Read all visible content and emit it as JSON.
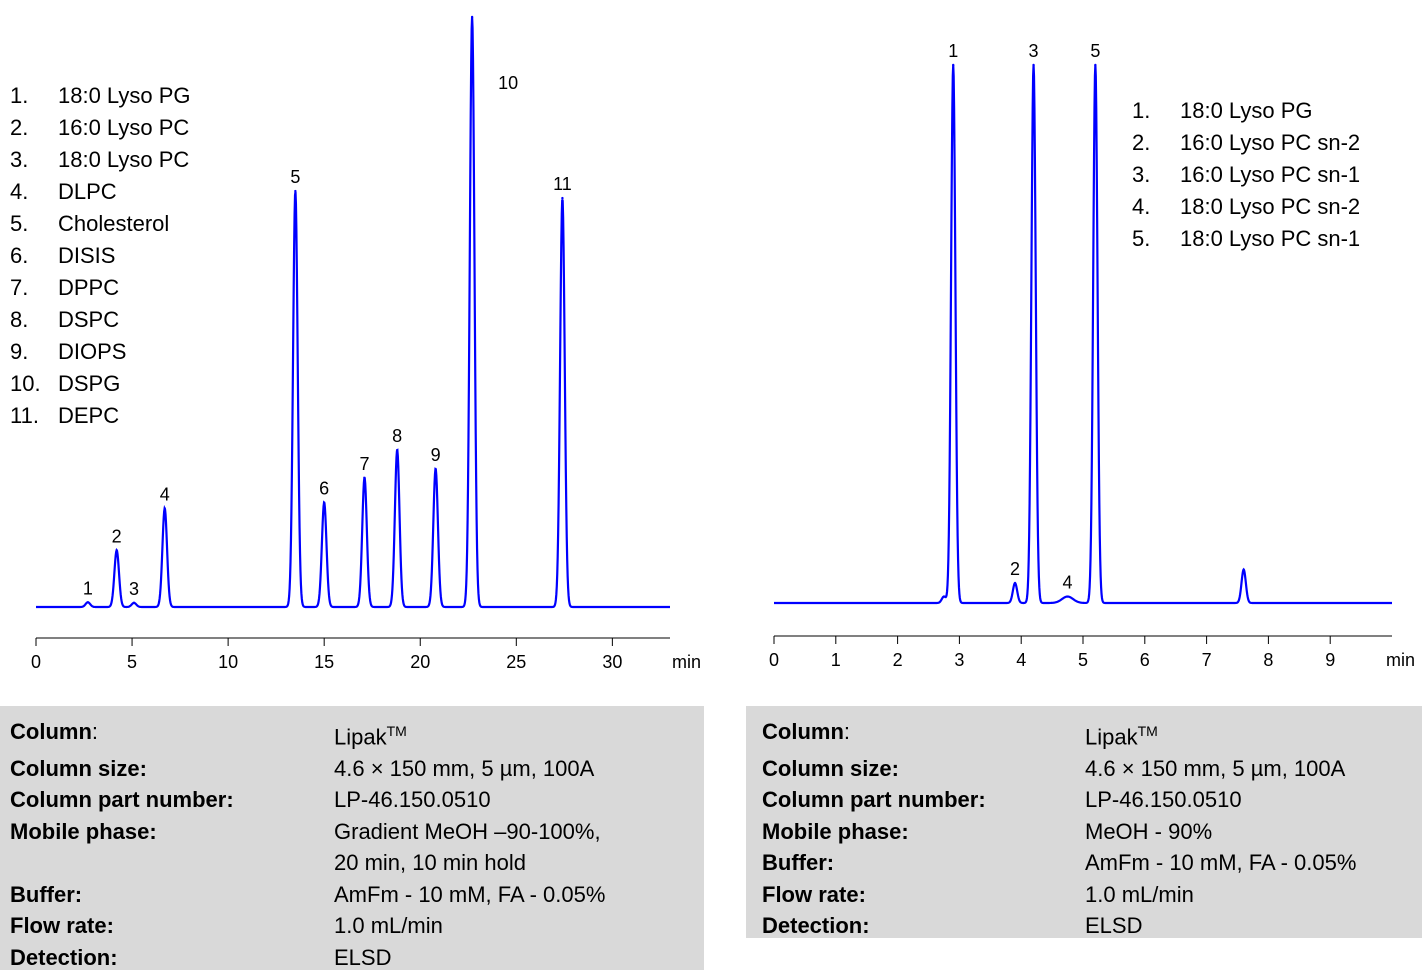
{
  "chart_data": [
    {
      "type": "line",
      "xlabel": "min",
      "xlim": [
        0,
        33
      ],
      "xticks": [
        0,
        5,
        10,
        15,
        20,
        25,
        30
      ],
      "ylim": [
        0,
        1
      ],
      "line_color": "#0000ff",
      "peaks": [
        {
          "label": "1",
          "x": 2.7,
          "height": 0.008
        },
        {
          "label": "2",
          "x": 4.2,
          "height": 0.096
        },
        {
          "label": "3",
          "x": 5.1,
          "height": 0.007
        },
        {
          "label": "4",
          "x": 6.7,
          "height": 0.167
        },
        {
          "label": "5",
          "x": 13.5,
          "height": 0.705
        },
        {
          "label": "6",
          "x": 15.0,
          "height": 0.177
        },
        {
          "label": "7",
          "x": 17.1,
          "height": 0.219
        },
        {
          "label": "8",
          "x": 18.8,
          "height": 0.266
        },
        {
          "label": "9",
          "x": 20.8,
          "height": 0.234
        },
        {
          "label": "10",
          "x": 22.7,
          "height": 1.0
        },
        {
          "label": "11",
          "x": 27.4,
          "height": 0.693
        }
      ],
      "legend": [
        {
          "num": "1.",
          "name": "18:0 Lyso PG"
        },
        {
          "num": "2.",
          "name": "16:0 Lyso PC"
        },
        {
          "num": "3.",
          "name": "18:0 Lyso PC"
        },
        {
          "num": "4.",
          "name": "DLPC"
        },
        {
          "num": "5.",
          "name": "Cholesterol"
        },
        {
          "num": "6.",
          "name": "DISIS"
        },
        {
          "num": "7.",
          "name": "DPPC"
        },
        {
          "num": "8.",
          "name": "DSPC"
        },
        {
          "num": "9.",
          "name": "DIOPS"
        },
        {
          "num": "10.",
          "name": "DSPG"
        },
        {
          "num": "11.",
          "name": "DEPC"
        }
      ]
    },
    {
      "type": "line",
      "xlabel": "min",
      "xlim": [
        0,
        10
      ],
      "xticks": [
        0,
        1,
        2,
        3,
        4,
        5,
        6,
        7,
        8,
        9
      ],
      "ylim": [
        0,
        1
      ],
      "line_color": "#0000ff",
      "peaks": [
        {
          "label": "",
          "x": 2.75,
          "height": 0.012
        },
        {
          "label": "1",
          "x": 2.9,
          "height": 1.0
        },
        {
          "label": "2",
          "x": 3.9,
          "height": 0.037
        },
        {
          "label": "3",
          "x": 4.2,
          "height": 1.0
        },
        {
          "label": "4",
          "x": 4.75,
          "height": 0.012
        },
        {
          "label": "5",
          "x": 5.2,
          "height": 1.0
        },
        {
          "label": "",
          "x": 7.6,
          "height": 0.062
        }
      ],
      "legend": [
        {
          "num": "1.",
          "name": "18:0 Lyso PG"
        },
        {
          "num": "2.",
          "name": "16:0 Lyso PC sn-2"
        },
        {
          "num": "3.",
          "name": "16:0 Lyso PC sn-1"
        },
        {
          "num": "4.",
          "name": "18:0 Lyso PC sn-2"
        },
        {
          "num": "5.",
          "name": "18:0 Lyso PC sn-1"
        }
      ]
    }
  ],
  "info_left": [
    {
      "key": "Column",
      "suffix": ":",
      "value": "Lipak",
      "sup": "TM"
    },
    {
      "key": "Column size:",
      "suffix": "",
      "value": "4.6 × 150 mm, 5 µm, 100A"
    },
    {
      "key": "Column part number:",
      "suffix": "",
      "value": "LP-46.150.0510"
    },
    {
      "key": "Mobile phase:",
      "suffix": "",
      "value": "Gradient MeOH –90-100%,"
    },
    {
      "key": "",
      "suffix": "",
      "value": "20 min, 10 min hold"
    },
    {
      "key": "Buffer:",
      "suffix": "",
      "value": "AmFm - 10 mM, FA - 0.05%"
    },
    {
      "key": "Flow rate:",
      "suffix": "",
      "value": "1.0 mL/min"
    },
    {
      "key": "Detection:",
      "suffix": "",
      "value": "ELSD"
    }
  ],
  "info_right": [
    {
      "key": "Column",
      "suffix": ":",
      "value": "Lipak",
      "sup": "TM"
    },
    {
      "key": "Column size:",
      "suffix": "",
      "value": "4.6 × 150 mm, 5 µm, 100A"
    },
    {
      "key": "Column part number:",
      "suffix": "",
      "value": "LP-46.150.0510"
    },
    {
      "key": "Mobile phase:",
      "suffix": "",
      "value": "MeOH - 90%"
    },
    {
      "key": "Buffer:",
      "suffix": "",
      "value": "AmFm - 10 mM, FA - 0.05%"
    },
    {
      "key": "Flow rate:",
      "suffix": "",
      "value": "1.0 mL/min"
    },
    {
      "key": "Detection:",
      "suffix": "",
      "value": "ELSD"
    }
  ]
}
